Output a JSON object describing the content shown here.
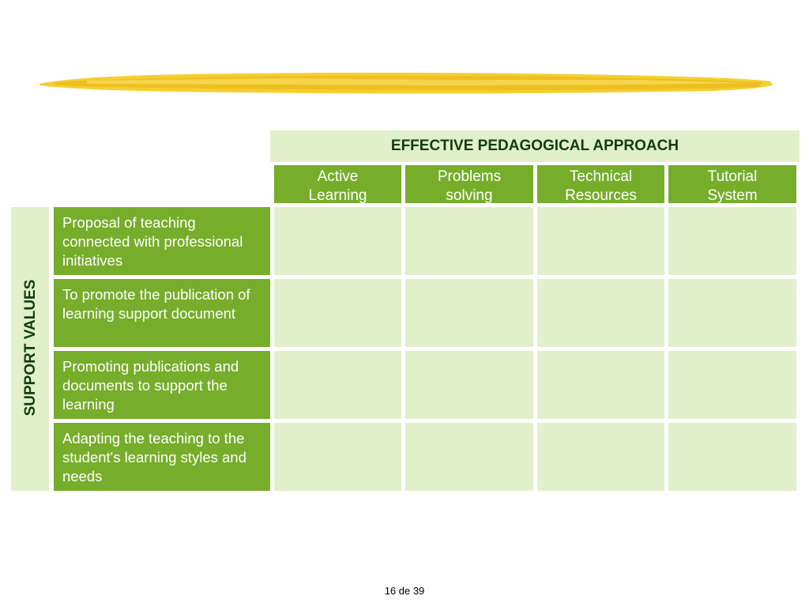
{
  "header": {
    "title": "EFFECTIVE PEDAGOGICAL APPROACH"
  },
  "columns": [
    {
      "line1": "Active",
      "line2": "Learning"
    },
    {
      "line1": "Problems",
      "line2": "solving"
    },
    {
      "line1": "Technical",
      "line2": "Resources"
    },
    {
      "line1": "Tutorial",
      "line2": "System"
    }
  ],
  "side_label": "SUPPORT VALUES",
  "rows": [
    {
      "label": "Proposal of teaching connected with professional initiatives"
    },
    {
      "label": "To promote the publication of learning support document"
    },
    {
      "label": "Promoting publications and documents to support the learning"
    },
    {
      "label": "Adapting the teaching to the student's learning styles and needs"
    }
  ],
  "footer": {
    "page": "16 de 39"
  },
  "colors": {
    "green_dark": "#76ad2a",
    "green_light": "#e2efcb",
    "brush": "#f2c21b",
    "title_text": "#0e3d12"
  }
}
